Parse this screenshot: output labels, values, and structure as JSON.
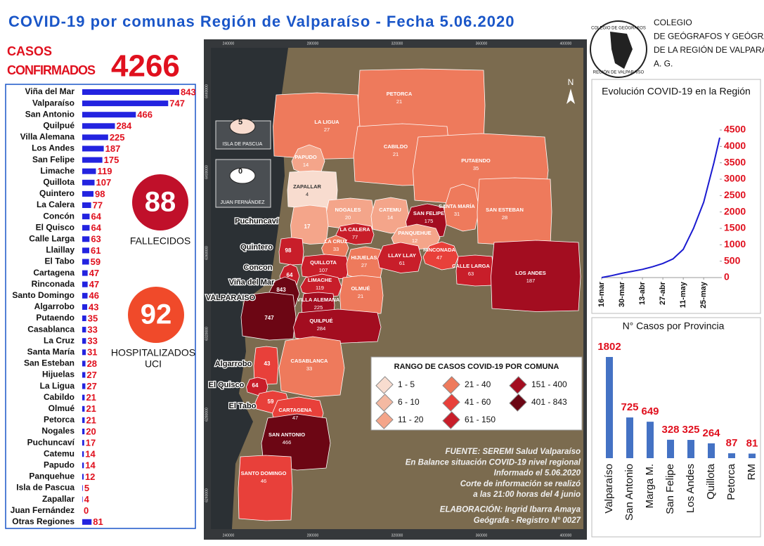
{
  "header": {
    "title": "COVID-19 por comunas Región de Valparaíso - Fecha 5.06.2020"
  },
  "org": {
    "lines": [
      "COLEGIO",
      "DE GEÓGRAFOS Y GEÓGRAFAS",
      "DE LA REGIÓN DE VALPARAÍSO",
      "A. G."
    ],
    "logo_top": "COLEGIO DE GEÓGRAFOS",
    "logo_bottom": "REGIÓN DE VALPARAÍSO"
  },
  "stats": {
    "cases_label_1": "CASOS",
    "cases_label_2": "CONFIRMADOS",
    "cases": 4266,
    "deaths": 88,
    "deaths_label": "FALLECIDOS",
    "icu": 92,
    "icu_label_1": "HOSPITALIZADOS",
    "icu_label_2": "UCI"
  },
  "chart_data": [
    {
      "type": "hbar",
      "color": "#2323e0",
      "label_color": "#e0101e",
      "categories": [
        "Viña del Mar",
        "Valparaíso",
        "San Antonio",
        "Quilpué",
        "Villa Alemana",
        "Los Andes",
        "San Felipe",
        "Limache",
        "Quillota",
        "Quintero",
        "La Calera",
        "Concón",
        "El Quisco",
        "Calle Larga",
        "Llaillay",
        "El Tabo",
        "Cartagena",
        "Rinconada",
        "Santo Domingo",
        "Algarrobo",
        "Putaendo",
        "Casablanca",
        "La Cruz",
        "Santa María",
        "San Esteban",
        "Hijuelas",
        "La Ligua",
        "Cabildo",
        "Olmué",
        "Petorca",
        "Nogales",
        "Puchuncaví",
        "Catemu",
        "Papudo",
        "Panquehue",
        "Isla de Pascua",
        "Zapallar",
        "Juan Fernández",
        "Otras Regiones"
      ],
      "values": [
        843,
        747,
        466,
        284,
        225,
        187,
        175,
        119,
        107,
        98,
        77,
        64,
        64,
        63,
        61,
        59,
        47,
        47,
        46,
        43,
        35,
        33,
        33,
        31,
        28,
        27,
        27,
        21,
        21,
        21,
        20,
        17,
        14,
        14,
        12,
        5,
        4,
        0,
        81
      ]
    },
    {
      "type": "line",
      "title": "Evolución COVID-19 en la Región",
      "color": "#1a1ad0",
      "tick_color": "#e0101e",
      "x": [
        "16-mar",
        "23-mar",
        "30-mar",
        "6-abr",
        "13-abr",
        "20-abr",
        "27-abr",
        "4-may",
        "11-may",
        "18-may",
        "25-may",
        "1-jun",
        "5-jun"
      ],
      "values": [
        0,
        60,
        130,
        190,
        250,
        330,
        430,
        570,
        860,
        1500,
        2300,
        3500,
        4266
      ],
      "xlim": [
        "16-mar",
        "5-jun"
      ],
      "xticks": [
        "16-mar",
        "30-mar",
        "13-abr",
        "27-abr",
        "11-may",
        "25-may"
      ],
      "ylim": [
        0,
        4500
      ],
      "yticks": [
        0,
        500,
        1000,
        1500,
        2000,
        2500,
        3000,
        3500,
        4000,
        4500
      ]
    },
    {
      "type": "bar",
      "title": "N° Casos por Provincia",
      "color": "#4472c4",
      "label_color": "#e0101e",
      "categories": [
        "Valparaíso",
        "San Antonio",
        "Marga M.",
        "San Felipe",
        "Los Andes",
        "Quillota",
        "Petorca",
        "RM"
      ],
      "values": [
        1802,
        725,
        649,
        328,
        325,
        264,
        87,
        81
      ]
    }
  ],
  "map": {
    "xticks": [
      240000,
      280000,
      320000,
      360000,
      400000
    ],
    "yticks": [
      6440000,
      6400000,
      6360000,
      6320000,
      6280000,
      6240000
    ],
    "north": "N",
    "regions": [
      {
        "label": "PETORCA",
        "value": 21,
        "color": "#ee7a5c"
      },
      {
        "label": "LA LIGUA",
        "value": 27,
        "color": "#ee7a5c"
      },
      {
        "label": "CABILDO",
        "value": 21,
        "color": "#ee7a5c"
      },
      {
        "label": "PUTAENDO",
        "value": 35,
        "color": "#ee7a5c"
      },
      {
        "label": "PAPUDO",
        "value": 14,
        "color": "#f4a58a"
      },
      {
        "label": "ZAPALLAR",
        "value": 4,
        "color": "#f8dccf"
      },
      {
        "label": "NOGALES",
        "value": 20,
        "color": "#f4a58a"
      },
      {
        "label": "CATEMU",
        "value": 14,
        "color": "#f4a58a"
      },
      {
        "label": "SAN FELIPE",
        "value": 175,
        "color": "#a30d20"
      },
      {
        "label": "SANTA MARÍA",
        "value": 31,
        "color": "#ee7a5c"
      },
      {
        "label": "SAN ESTEBAN",
        "value": 28,
        "color": "#ee7a5c"
      },
      {
        "value": 17,
        "color": "#f4a58a"
      },
      {
        "label": "LA CALERA",
        "value": 77,
        "color": "#c81e2a"
      },
      {
        "label": "LA CRUZ",
        "value": 33,
        "color": "#ee7a5c"
      },
      {
        "label": "PANQUEHUE",
        "value": 12,
        "color": "#f4a58a"
      },
      {
        "value": 98,
        "color": "#c81e2a"
      },
      {
        "label": "QUILLOTA",
        "value": 107,
        "color": "#c81e2a"
      },
      {
        "label": "HIJUELAS",
        "value": 27,
        "color": "#ee7a5c"
      },
      {
        "label": "LLAY LLAY",
        "value": 61,
        "color": "#c81e2a"
      },
      {
        "label": "RINCONADA",
        "value": 47,
        "color": "#e8403a"
      },
      {
        "label": "CALLE LARGA",
        "value": 63,
        "color": "#c81e2a"
      },
      {
        "label": "LOS ANDES",
        "value": 187,
        "color": "#a30d20"
      },
      {
        "value": 64,
        "color": "#c81e2a"
      },
      {
        "label": "LIMACHE",
        "value": 119,
        "color": "#c81e2a"
      },
      {
        "value": 843,
        "color": "#6c0614"
      },
      {
        "label": "VILLA ALEMANA",
        "value": 225,
        "color": "#a30d20"
      },
      {
        "label": "OLMUÉ",
        "value": 21,
        "color": "#ee7a5c"
      },
      {
        "value": 747,
        "color": "#6c0614"
      },
      {
        "label": "QUILPUÉ",
        "value": 284,
        "color": "#a30d20"
      },
      {
        "label": "CASABLANCA",
        "value": 33,
        "color": "#ee7a5c"
      },
      {
        "value": 43,
        "color": "#e8403a"
      },
      {
        "value": 64,
        "color": "#c81e2a"
      },
      {
        "value": 59,
        "color": "#e8403a"
      },
      {
        "label": "CARTAGENA",
        "value": 47,
        "color": "#e8403a"
      },
      {
        "label": "SAN ANTONIO",
        "value": 466,
        "color": "#6c0614"
      },
      {
        "label": "SANTO DOMINGO",
        "value": 46,
        "color": "#e8403a"
      }
    ],
    "islands": [
      {
        "label": "ISLA DE PASCUA",
        "value": 5,
        "color": "#f8dccf"
      },
      {
        "label": "JUAN FERNÁNDEZ",
        "value": 0,
        "color": "#ffffff"
      }
    ],
    "coast_labels": [
      "Puchuncaví",
      "Quintero",
      "Concon",
      "Viña del Mar",
      "VALPARAISO",
      "Algarrobo",
      "El Quisco",
      "El Tabo"
    ],
    "legend": {
      "title": "RANGO DE CASOS COVID-19 POR COMUNA",
      "items": [
        {
          "label": "1 - 5",
          "color": "#f8dccf"
        },
        {
          "label": "6 - 10",
          "color": "#f4b9a2"
        },
        {
          "label": "11 - 20",
          "color": "#f4a58a"
        },
        {
          "label": "21 - 40",
          "color": "#ee7a5c"
        },
        {
          "label": "41 - 60",
          "color": "#e8403a"
        },
        {
          "label": "61 - 150",
          "color": "#c81e2a"
        },
        {
          "label": "151 - 400",
          "color": "#a30d20"
        },
        {
          "label": "401 - 843",
          "color": "#6c0614"
        }
      ]
    },
    "source": [
      "FUENTE: SEREMI Salud Valparaíso",
      "En Balance situación COVID-19 nivel regional",
      "Informado el 5.06.2020",
      "Corte de información se realizó",
      "a las 21:00 horas del 4 junio",
      "ELABORACIÓN: Ingrid Ibarra Amaya",
      "Geógrafa - Registro N° 0027"
    ]
  }
}
